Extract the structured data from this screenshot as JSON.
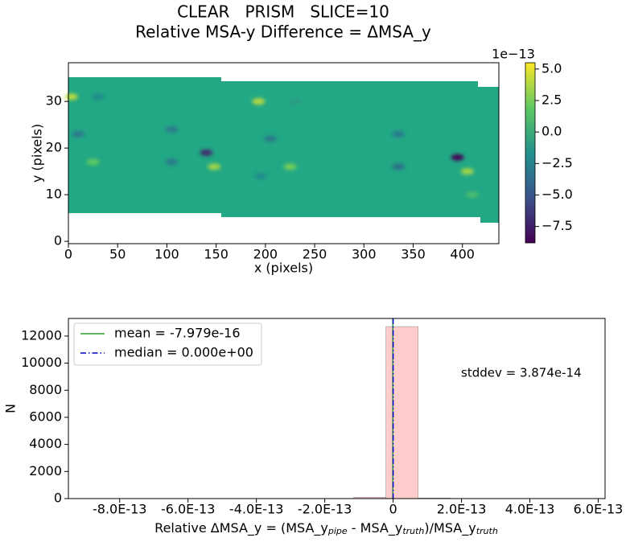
{
  "chart_data": [
    {
      "type": "image",
      "title": "CLEAR   PRISM   SLICE=10",
      "subtitle": "Relative MSA-y Difference = ΔMSA_y",
      "xlabel": "x (pixels)",
      "ylabel": "y (pixels)",
      "xlim": [
        0,
        437
      ],
      "ylim": [
        -0.5,
        38.3
      ],
      "xticks": [
        0,
        50,
        100,
        150,
        200,
        250,
        300,
        350,
        400
      ],
      "yticks": [
        0,
        10,
        20,
        30
      ],
      "colormap": "viridis",
      "clim": [
        -8.8,
        5.5
      ],
      "colorbar_offset": "1e−13",
      "colorbar_ticks": [
        {
          "value": 5,
          "label": "5.0"
        },
        {
          "value": 2.5,
          "label": "2.5"
        },
        {
          "value": 0,
          "label": "0.0"
        },
        {
          "value": -2.5,
          "label": "−2.5"
        },
        {
          "value": -5,
          "label": "−5.0"
        },
        {
          "value": -7.5,
          "label": "−7.5"
        }
      ],
      "spots": {
        "x": [
          3,
          193,
          140,
          395,
          148,
          405,
          225,
          25,
          105,
          10,
          205,
          105,
          335,
          335,
          195,
          30,
          230,
          410
        ],
        "y": [
          31,
          30,
          19,
          18,
          16,
          15,
          16,
          17,
          24,
          23,
          22,
          17,
          23,
          16,
          14,
          31,
          30,
          10
        ],
        "values": [
          4,
          4,
          -7,
          -8.8,
          3.5,
          3.5,
          2.5,
          2,
          -3,
          -3,
          -3,
          -3,
          -3,
          -3.5,
          -2,
          -2,
          -1,
          1
        ]
      }
    },
    {
      "type": "histogram",
      "xlabel_parts": [
        "Relative ΔMSA_y = (MSA_y",
        "pipe",
        " - MSA_y",
        "truth",
        ")/MSA_y",
        "truth"
      ],
      "ylabel": "N",
      "xlim": [
        -9.5e-13,
        6.2e-13
      ],
      "ylim": [
        0,
        13300
      ],
      "xticks": [
        {
          "value": -8e-13,
          "label": "-8.0E-13"
        },
        {
          "value": -6e-13,
          "label": "-6.0E-13"
        },
        {
          "value": -4e-13,
          "label": "-4.0E-13"
        },
        {
          "value": -2e-13,
          "label": "-2.0E-13"
        },
        0,
        {
          "value": 2e-13,
          "label": "2.0E-13"
        },
        {
          "value": 4e-13,
          "label": "4.0E-13"
        },
        {
          "value": 6e-13,
          "label": "6.0E-13"
        }
      ],
      "yticks": [
        0,
        2000,
        4000,
        6000,
        8000,
        10000,
        12000
      ],
      "bins": [
        -1.15e-13,
        -2.1e-14,
        7.3e-14,
        1.67e-13
      ],
      "counts": [
        100,
        12700,
        40
      ],
      "color": "#ffcccc",
      "lines": [
        {
          "name": "mean = -7.979e-16",
          "value": -7.979e-16,
          "color": "#2ca02c",
          "dash": "solid"
        },
        {
          "name": "median = 0.000e+00",
          "value": 0,
          "color": "#0000cc",
          "dash": "dashdot"
        }
      ],
      "legend": "upper left",
      "annotation": "stddev = 3.874e-14"
    }
  ]
}
